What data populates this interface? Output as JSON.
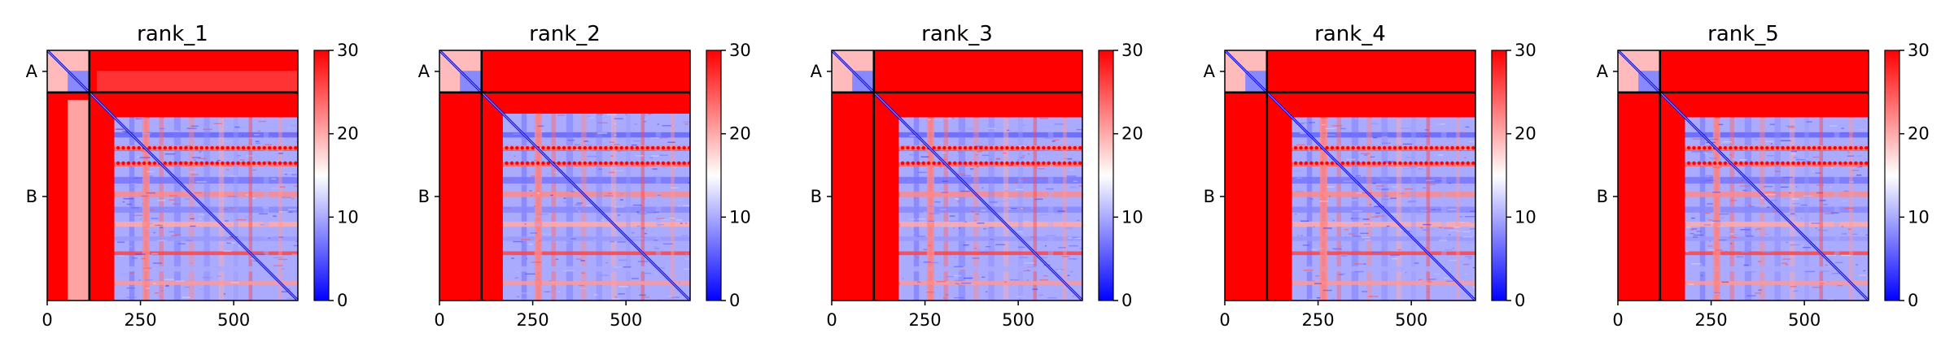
{
  "chart_data": [
    {
      "type": "heatmap",
      "title": "rank_1",
      "xlabel": "",
      "ylabel": "",
      "xlim": [
        0,
        672
      ],
      "x_ticks": [
        "0",
        "250",
        "500"
      ],
      "y_ticks": [
        "A",
        "B"
      ],
      "chain_boundary": 113,
      "total_length": 672,
      "colorbar": {
        "min": 0,
        "max": 30,
        "ticks": [
          "0",
          "10",
          "20",
          "30"
        ],
        "colormap": "bwr"
      }
    },
    {
      "type": "heatmap",
      "title": "rank_2",
      "xlabel": "",
      "ylabel": "",
      "xlim": [
        0,
        672
      ],
      "x_ticks": [
        "0",
        "250",
        "500"
      ],
      "y_ticks": [
        "A",
        "B"
      ],
      "chain_boundary": 113,
      "total_length": 672,
      "colorbar": {
        "min": 0,
        "max": 30,
        "ticks": [
          "0",
          "10",
          "20",
          "30"
        ],
        "colormap": "bwr"
      }
    },
    {
      "type": "heatmap",
      "title": "rank_3",
      "xlabel": "",
      "ylabel": "",
      "xlim": [
        0,
        672
      ],
      "x_ticks": [
        "0",
        "250",
        "500"
      ],
      "y_ticks": [
        "A",
        "B"
      ],
      "chain_boundary": 113,
      "total_length": 672,
      "colorbar": {
        "min": 0,
        "max": 30,
        "ticks": [
          "0",
          "10",
          "20",
          "30"
        ],
        "colormap": "bwr"
      }
    },
    {
      "type": "heatmap",
      "title": "rank_4",
      "xlabel": "",
      "ylabel": "",
      "xlim": [
        0,
        672
      ],
      "x_ticks": [
        "0",
        "250",
        "500"
      ],
      "y_ticks": [
        "A",
        "B"
      ],
      "chain_boundary": 113,
      "total_length": 672,
      "colorbar": {
        "min": 0,
        "max": 30,
        "ticks": [
          "0",
          "10",
          "20",
          "30"
        ],
        "colormap": "bwr"
      }
    },
    {
      "type": "heatmap",
      "title": "rank_5",
      "xlabel": "",
      "ylabel": "",
      "xlim": [
        0,
        672
      ],
      "x_ticks": [
        "0",
        "250",
        "500"
      ],
      "y_ticks": [
        "A",
        "B"
      ],
      "chain_boundary": 113,
      "total_length": 672,
      "colorbar": {
        "min": 0,
        "max": 30,
        "ticks": [
          "0",
          "10",
          "20",
          "30"
        ],
        "colormap": "bwr"
      }
    }
  ],
  "colors": {
    "low": "#0000ff",
    "mid": "#ffffff",
    "high": "#ff0000",
    "boundary": "#000000"
  }
}
